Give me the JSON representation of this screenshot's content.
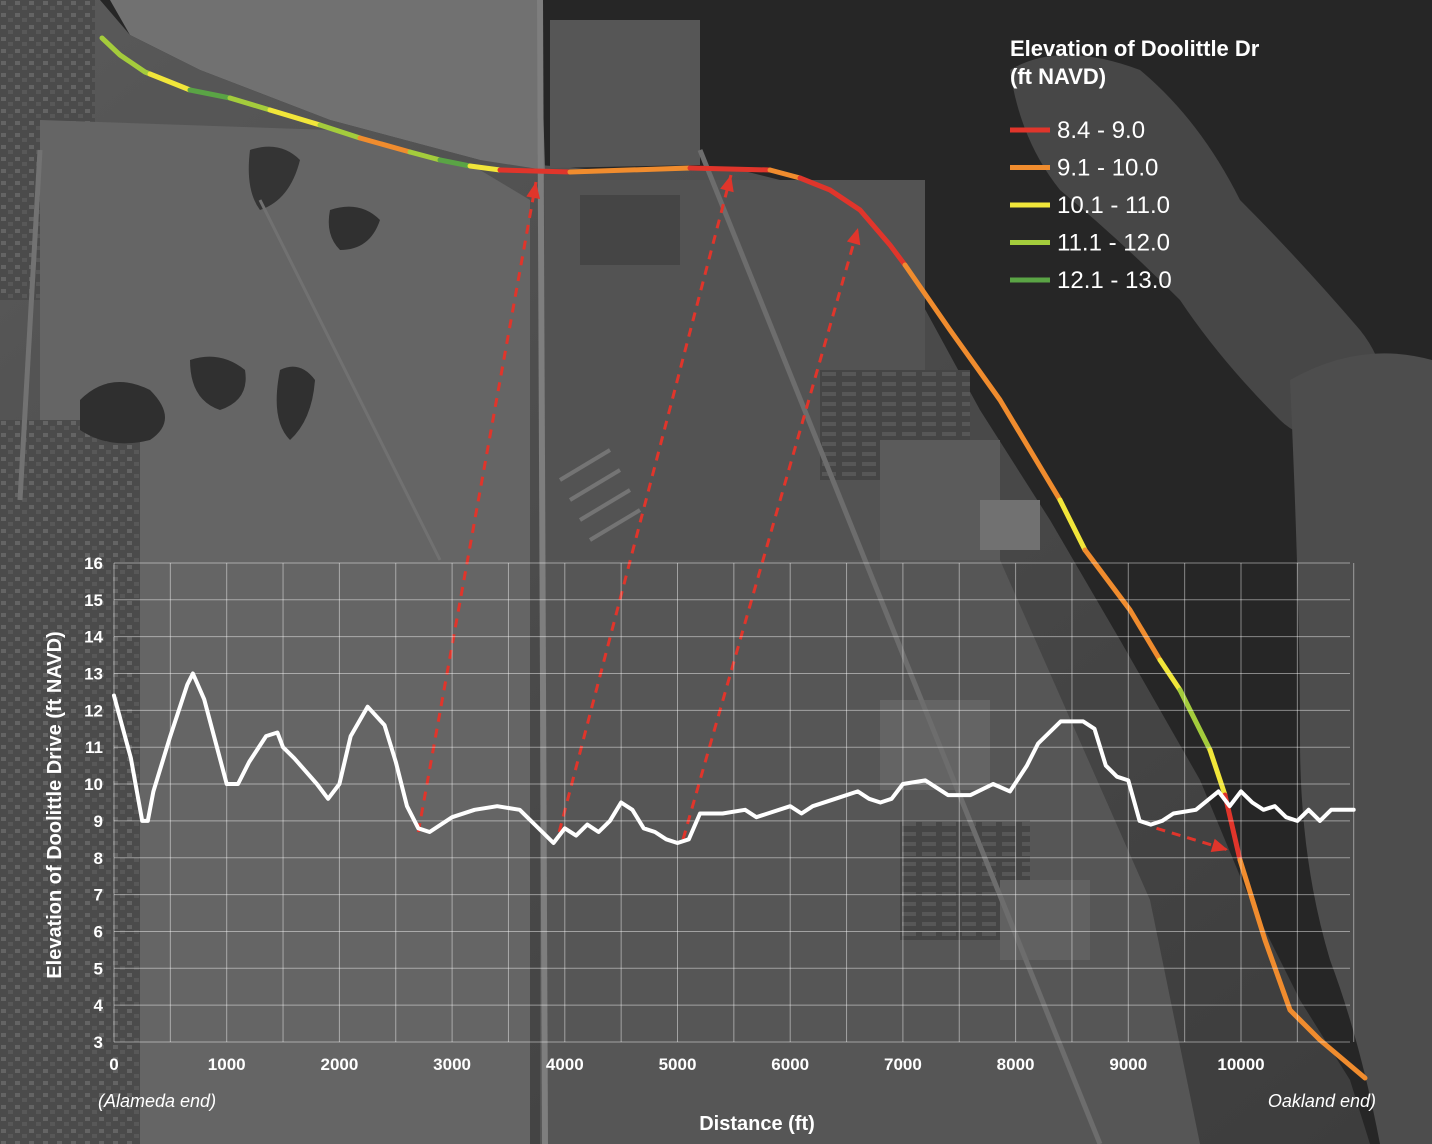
{
  "legend": {
    "title_line1": "Elevation of Doolittle Dr",
    "title_line2": "(ft NAVD)",
    "items": [
      {
        "label": "8.4 - 9.0",
        "color": "#e0352b"
      },
      {
        "label": "9.1 - 10.0",
        "color": "#f08c2e"
      },
      {
        "label": "10.1 - 11.0",
        "color": "#f1e63a"
      },
      {
        "label": "11.1 - 12.0",
        "color": "#a4cc3c"
      },
      {
        "label": "12.1 - 13.0",
        "color": "#5aa445"
      }
    ]
  },
  "chart_data": {
    "type": "line",
    "xlabel": "Distance (ft)",
    "ylabel": "Elevation of Doolittle Drive (ft NAVD)",
    "xlim": [
      0,
      11000
    ],
    "ylim": [
      3,
      16
    ],
    "xticks": [
      0,
      1000,
      2000,
      3000,
      4000,
      5000,
      6000,
      7000,
      8000,
      9000,
      10000
    ],
    "yticks": [
      3,
      4,
      5,
      6,
      7,
      8,
      9,
      10,
      11,
      12,
      13,
      14,
      15,
      16
    ],
    "grid": true,
    "left_end_label": "(Alameda end)",
    "right_end_label": "Oakland end)",
    "line_color": "#ffffff",
    "x": [
      0,
      150,
      250,
      300,
      350,
      500,
      650,
      700,
      800,
      1000,
      1100,
      1200,
      1350,
      1450,
      1500,
      1600,
      1800,
      1900,
      2000,
      2100,
      2250,
      2400,
      2500,
      2600,
      2700,
      2800,
      3000,
      3200,
      3400,
      3600,
      3800,
      3900,
      4000,
      4100,
      4200,
      4300,
      4400,
      4500,
      4600,
      4700,
      4800,
      4900,
      5000,
      5100,
      5200,
      5400,
      5600,
      5700,
      5800,
      6000,
      6100,
      6200,
      6400,
      6600,
      6700,
      6800,
      6900,
      7000,
      7200,
      7400,
      7600,
      7800,
      7950,
      8100,
      8200,
      8400,
      8600,
      8700,
      8800,
      8900,
      9000,
      9100,
      9200,
      9300,
      9400,
      9600,
      9800,
      9900,
      10000,
      10100,
      10200,
      10300,
      10400,
      10500,
      10600,
      10700,
      10800,
      10900,
      11000
    ],
    "y": [
      12.4,
      10.7,
      9.0,
      9.0,
      9.8,
      11.3,
      12.7,
      13.0,
      12.3,
      10.0,
      10.0,
      10.6,
      11.3,
      11.4,
      11.0,
      10.7,
      10.0,
      9.6,
      10.0,
      11.3,
      12.1,
      11.6,
      10.6,
      9.4,
      8.8,
      8.7,
      9.1,
      9.3,
      9.4,
      9.3,
      8.7,
      8.4,
      8.8,
      8.6,
      8.9,
      8.7,
      9.0,
      9.5,
      9.3,
      8.8,
      8.7,
      8.5,
      8.4,
      8.5,
      9.2,
      9.2,
      9.3,
      9.1,
      9.2,
      9.4,
      9.2,
      9.4,
      9.6,
      9.8,
      9.6,
      9.5,
      9.6,
      10.0,
      10.1,
      9.7,
      9.7,
      10.0,
      9.8,
      10.5,
      11.1,
      11.7,
      11.7,
      11.5,
      10.5,
      10.2,
      10.1,
      9.0,
      8.9,
      9.0,
      9.2,
      9.3,
      9.8,
      9.4,
      9.8,
      9.5,
      9.3,
      9.4,
      9.1,
      9.0,
      9.3,
      9.0,
      9.3,
      9.3,
      9.3
    ]
  }
}
